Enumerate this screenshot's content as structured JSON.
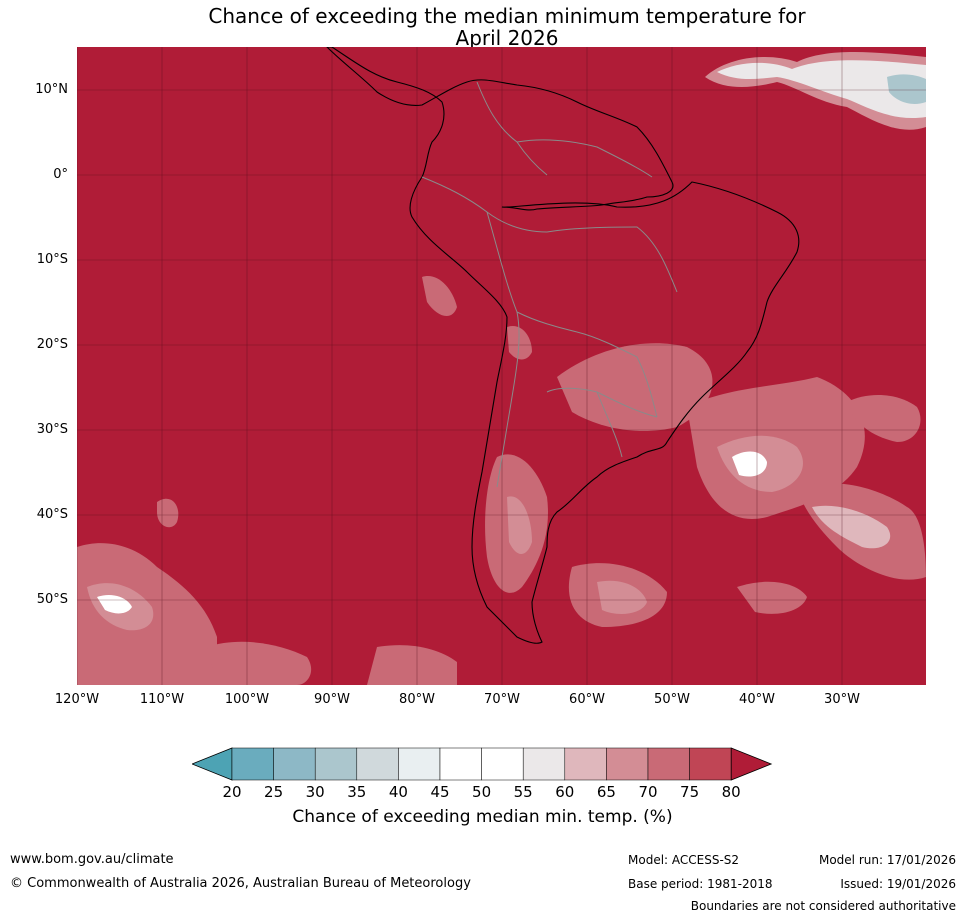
{
  "title": {
    "line1": "Chance of exceeding the median minimum temperature for",
    "line2": "April 2026"
  },
  "map": {
    "region": "South America",
    "fill_color_dominant": "#b01c37",
    "lat_labels": [
      "10°N",
      "0°",
      "10°S",
      "20°S",
      "30°S",
      "40°S",
      "50°S"
    ],
    "lon_labels": [
      "120°W",
      "110°W",
      "100°W",
      "90°W",
      "80°W",
      "70°W",
      "60°W",
      "50°W",
      "40°W",
      "30°W"
    ]
  },
  "colorbar": {
    "ticks": [
      "20",
      "25",
      "30",
      "35",
      "40",
      "45",
      "50",
      "55",
      "60",
      "65",
      "70",
      "75",
      "80"
    ],
    "colors": [
      "#4da3b4",
      "#6aacbe",
      "#8db8c6",
      "#abc6cd",
      "#d0d9dc",
      "#e9eff1",
      "#ffffff",
      "#ffffff",
      "#ebe8e9",
      "#dfb7bc",
      "#d38d95",
      "#c96a76",
      "#c04555",
      "#b01c37"
    ],
    "label": "Chance of exceeding median min. temp. (%)"
  },
  "footer": {
    "url": "www.bom.gov.au/climate",
    "copyright": "© Commonwealth of Australia 2026, Australian Bureau of Meteorology",
    "model": "Model: ACCESS-S2",
    "base_period": "Base period: 1981-2018",
    "model_run": "Model run: 17/01/2026",
    "issued": "Issued: 19/01/2026",
    "disclaimer": "Boundaries are not considered authoritative"
  }
}
